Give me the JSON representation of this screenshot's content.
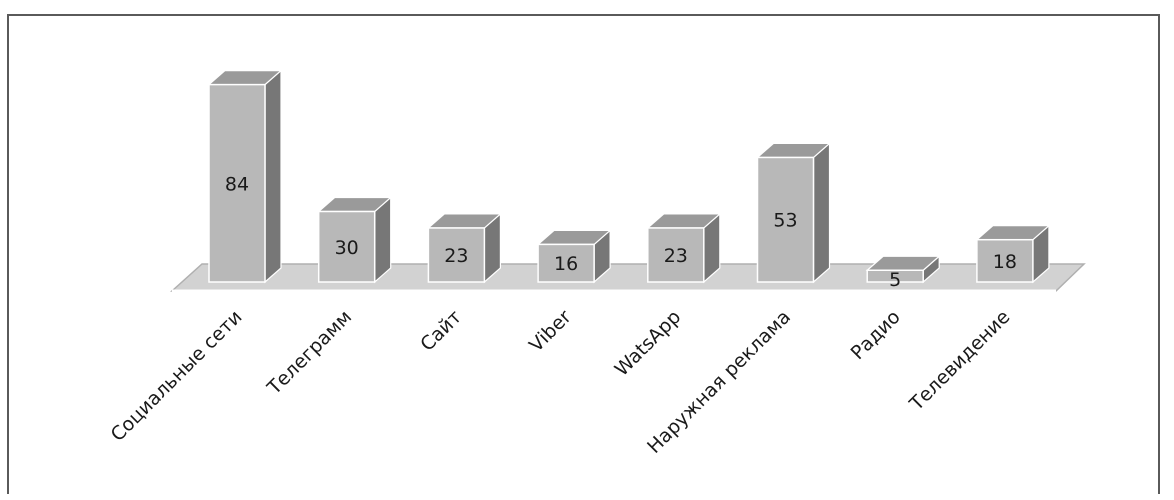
{
  "chart_data": {
    "type": "bar",
    "categories": [
      "Социальные сети",
      "Телеграмм",
      "Сайт",
      "Viber",
      "WatsApp",
      "Наружная реклама",
      "Радио",
      "Телевидение"
    ],
    "values": [
      84,
      30,
      23,
      16,
      23,
      53,
      5,
      18
    ],
    "title": "",
    "xlabel": "",
    "ylabel": "",
    "data_labels": true,
    "legend": "none",
    "grid": false,
    "style": "3d-column",
    "colors": {
      "bar_front": "#b8b8b8",
      "bar_side": "#777777",
      "bar_top": "#9a9a9a",
      "bar_edge": "#ffffff",
      "floor": "#d2d2d2",
      "floor_edge": "#b0b0b0",
      "frame": "#5a5a5a"
    }
  }
}
